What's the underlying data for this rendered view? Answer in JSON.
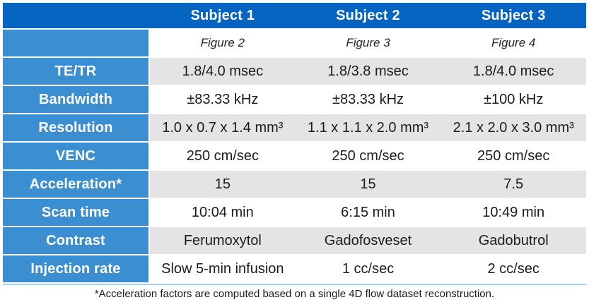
{
  "table": {
    "columns": [
      "Subject 1",
      "Subject 2",
      "Subject 3"
    ],
    "figure_row": [
      "Figure 2",
      "Figure 3",
      "Figure 4"
    ],
    "rows": [
      {
        "label": "TE/TR",
        "values": [
          "1.8/4.0 msec",
          "1.8/3.8 msec",
          "1.8/4.0 msec"
        ]
      },
      {
        "label": "Bandwidth",
        "values": [
          "±83.33 kHz",
          "±83.33 kHz",
          "±100 kHz"
        ]
      },
      {
        "label": "Resolution",
        "values": [
          "1.0 x 0.7 x 1.4 mm³",
          "1.1 x 1.1 x 2.0 mm³",
          "2.1 x 2.0 x 3.0 mm³"
        ]
      },
      {
        "label": "VENC",
        "values": [
          "250 cm/sec",
          "250 cm/sec",
          "250 cm/sec"
        ]
      },
      {
        "label": "Acceleration*",
        "values": [
          "15",
          "15",
          "7.5"
        ]
      },
      {
        "label": "Scan time",
        "values": [
          "10:04 min",
          "6:15 min",
          "10:49 min"
        ]
      },
      {
        "label": "Contrast",
        "values": [
          "Ferumoxytol",
          "Gadofosveset",
          "Gadobutrol"
        ]
      },
      {
        "label": "Injection rate",
        "values": [
          "Slow 5-min infusion",
          "1 cc/sec",
          "2 cc/sec"
        ]
      }
    ],
    "footnote": "*Acceleration factors are computed based on a single 4D flow dataset reconstruction."
  },
  "colors": {
    "header_blue": "#0564c0",
    "label_blue": "#3b8fd1",
    "row_gray": "#e4e4e7",
    "row_white": "#ffffff",
    "bottom_border_blue": "#a9cfec",
    "header_text": "#ffffff",
    "cell_text": "#1c1c1e"
  }
}
